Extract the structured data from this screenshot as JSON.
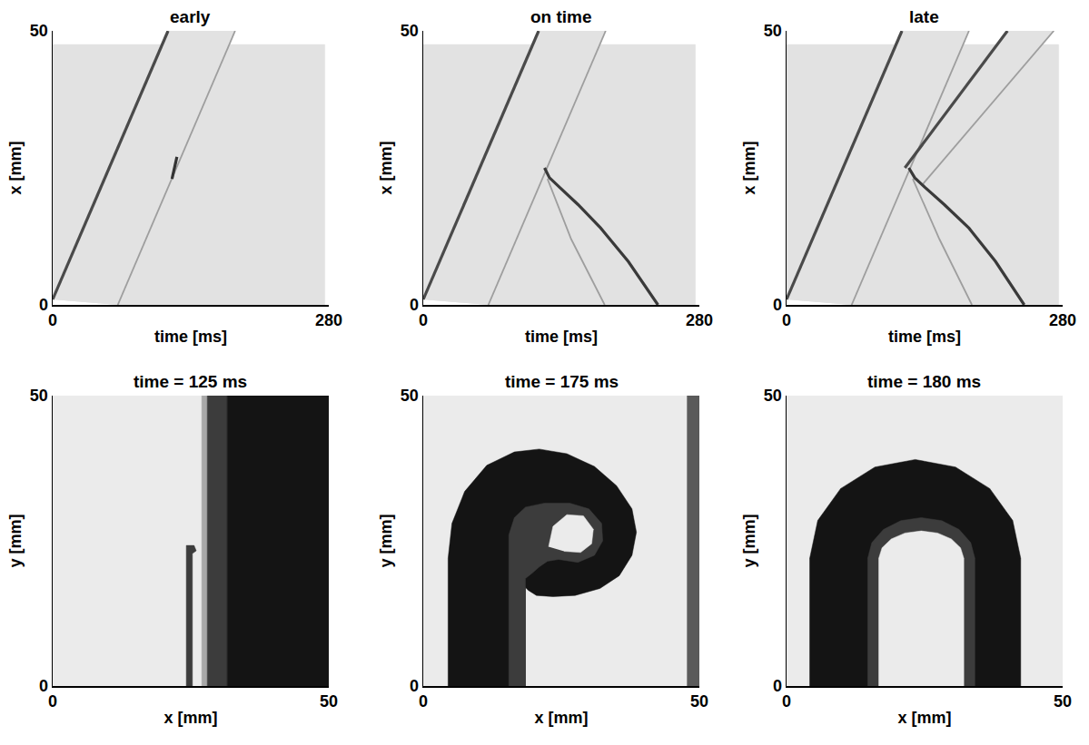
{
  "chart_data": [
    {
      "type": "line",
      "title": "early",
      "x_label": "time [ms]",
      "y_label": "x [mm]",
      "xlim": [
        0,
        280
      ],
      "xticks": [
        0,
        280
      ],
      "ylim": [
        0,
        50
      ],
      "yticks": [
        0,
        50
      ],
      "series": [
        {
          "type": "area",
          "color": "#e2e2e2",
          "x": [
            0,
            0,
            276,
            276,
            66
          ],
          "values": [
            1,
            47.5,
            47.5,
            0,
            0
          ]
        },
        {
          "type": "area",
          "color": "#e2e2e2",
          "x": [
            0,
            117,
            185,
            66
          ],
          "values": [
            1,
            50,
            50,
            0
          ]
        },
        {
          "type": "line",
          "color": "#4a4a4a",
          "line_style": "thick",
          "x": [
            0,
            117
          ],
          "values": [
            1,
            50
          ]
        },
        {
          "type": "line",
          "color": "#9e9e9e",
          "line_style": "solid",
          "x": [
            66,
            185
          ],
          "values": [
            0,
            50
          ]
        },
        {
          "type": "line",
          "color": "#333333",
          "line_style": "thick",
          "x": [
            121,
            123,
            125,
            126
          ],
          "values": [
            23,
            24.5,
            26,
            27
          ]
        }
      ]
    },
    {
      "type": "line",
      "title": "on time",
      "x_label": "time [ms]",
      "y_label": "x [mm]",
      "xlim": [
        0,
        280
      ],
      "xticks": [
        0,
        280
      ],
      "ylim": [
        0,
        50
      ],
      "yticks": [
        0,
        50
      ],
      "series": [
        {
          "type": "area",
          "color": "#e2e2e2",
          "x": [
            0,
            0,
            276,
            276,
            66
          ],
          "values": [
            1,
            47.5,
            47.5,
            0,
            0
          ]
        },
        {
          "type": "area",
          "color": "#e2e2e2",
          "x": [
            0,
            117,
            185,
            66
          ],
          "values": [
            1,
            50,
            50,
            0
          ]
        },
        {
          "type": "line",
          "color": "#4a4a4a",
          "line_style": "thick",
          "x": [
            0,
            117
          ],
          "values": [
            1,
            50
          ]
        },
        {
          "type": "line",
          "color": "#9e9e9e",
          "line_style": "solid",
          "x": [
            66,
            185
          ],
          "values": [
            0,
            50
          ]
        },
        {
          "type": "line",
          "color": "#9e9e9e",
          "line_style": "solid",
          "x": [
            126,
            150,
            184
          ],
          "values": [
            23,
            12,
            0
          ]
        },
        {
          "type": "line",
          "color": "#3a3a3a",
          "line_style": "thick",
          "x": [
            123,
            128,
            138,
            157,
            180,
            208,
            238
          ],
          "values": [
            25,
            23.2,
            21.5,
            18.3,
            14,
            7.9,
            0
          ]
        }
      ]
    },
    {
      "type": "line",
      "title": "late",
      "x_label": "time [ms]",
      "y_label": "x [mm]",
      "xlim": [
        0,
        280
      ],
      "xticks": [
        0,
        280
      ],
      "ylim": [
        0,
        50
      ],
      "yticks": [
        0,
        50
      ],
      "series": [
        {
          "type": "area",
          "color": "#e2e2e2",
          "x": [
            0,
            0,
            276,
            276,
            66
          ],
          "values": [
            1,
            47.5,
            47.5,
            0,
            0
          ]
        },
        {
          "type": "area",
          "color": "#e2e2e2",
          "x": [
            0,
            117,
            185,
            66
          ],
          "values": [
            1,
            50,
            50,
            0
          ]
        },
        {
          "type": "area",
          "color": "#e2e2e2",
          "x": [
            120,
            224,
            271,
            138
          ],
          "values": [
            25,
            50,
            50,
            22
          ]
        },
        {
          "type": "line",
          "color": "#4a4a4a",
          "line_style": "thick",
          "x": [
            0,
            117
          ],
          "values": [
            1,
            50
          ]
        },
        {
          "type": "line",
          "color": "#9e9e9e",
          "line_style": "solid",
          "x": [
            66,
            185
          ],
          "values": [
            0,
            50
          ]
        },
        {
          "type": "line",
          "color": "#4a4a4a",
          "line_style": "thick",
          "x": [
            120,
            224
          ],
          "values": [
            25,
            50
          ]
        },
        {
          "type": "line",
          "color": "#9e9e9e",
          "line_style": "solid",
          "x": [
            138,
            271
          ],
          "values": [
            22,
            50
          ]
        },
        {
          "type": "line",
          "color": "#9e9e9e",
          "line_style": "solid",
          "x": [
            128,
            155,
            188
          ],
          "values": [
            23,
            12,
            0
          ]
        },
        {
          "type": "line",
          "color": "#3a3a3a",
          "line_style": "thick",
          "x": [
            124,
            130,
            140,
            160,
            185,
            212,
            241
          ],
          "values": [
            25,
            23.2,
            21.5,
            18.3,
            14,
            7.9,
            0
          ]
        }
      ]
    },
    {
      "type": "area",
      "title": "time = 125 ms",
      "x_label": "x [mm]",
      "y_label": "y [mm]",
      "xlim": [
        0,
        50
      ],
      "xticks": [
        0,
        50
      ],
      "ylim": [
        0,
        50
      ],
      "yticks": [
        0,
        50
      ],
      "series": [
        {
          "color": "#ebebeb",
          "x": [
            0,
            0,
            50,
            50
          ],
          "values": [
            0,
            50,
            50,
            0
          ]
        },
        {
          "color": "#a8a8a8",
          "x": [
            27,
            27,
            28,
            28
          ],
          "values": [
            0,
            50,
            50,
            0
          ]
        },
        {
          "color": "#3c3c3c",
          "x": [
            28,
            28,
            31.6,
            31.6
          ],
          "values": [
            0,
            50,
            50,
            0
          ]
        },
        {
          "color": "#141414",
          "x": [
            31.6,
            31.6,
            50,
            50
          ],
          "values": [
            0,
            50,
            50,
            0
          ]
        },
        {
          "color": "#3c3c3c",
          "x": [
            24.2,
            24.2,
            25.6,
            26,
            25.3,
            25.3
          ],
          "values": [
            0,
            24.2,
            24.2,
            23.3,
            22.8,
            0
          ]
        }
      ]
    },
    {
      "type": "area",
      "title": "time = 175 ms",
      "x_label": "x [mm]",
      "y_label": "y [mm]",
      "xlim": [
        0,
        50
      ],
      "xticks": [
        0,
        50
      ],
      "ylim": [
        0,
        50
      ],
      "yticks": [
        0,
        50
      ],
      "series": [
        {
          "color": "#ebebeb",
          "x": [
            0,
            0,
            50,
            50
          ],
          "values": [
            0,
            50,
            50,
            0
          ]
        },
        {
          "color": "#141414",
          "x": [
            4.5,
            4.5,
            5.2,
            7.5,
            11.5,
            16.5,
            21,
            26,
            31,
            35,
            37.8,
            38.6,
            37.8,
            35.5,
            32,
            27.5,
            23.5,
            20.5,
            19,
            18.5,
            18.5
          ],
          "values": [
            0,
            22,
            28,
            33.5,
            38,
            40.3,
            40.8,
            40,
            37.8,
            34.5,
            30.5,
            26.5,
            22.5,
            19,
            16.8,
            15.6,
            15.4,
            15.6,
            16.5,
            17,
            0
          ]
        },
        {
          "color": "#3c3c3c",
          "x": [
            15.5,
            15.5,
            16.5,
            18.5,
            22,
            26.5,
            30,
            32.3,
            32.5,
            31,
            28,
            24.5,
            22.5,
            21,
            19.8,
            18.5,
            18.5
          ],
          "values": [
            0,
            26,
            29,
            30.8,
            31.5,
            31.5,
            30.5,
            28,
            25,
            22.5,
            21.3,
            21.8,
            21.5,
            20.5,
            19.5,
            18.5,
            0
          ]
        },
        {
          "color": "#ebebeb",
          "x": [
            22.7,
            23.5,
            26,
            29,
            30.8,
            30.5,
            28.5,
            25.5
          ],
          "values": [
            24,
            27.5,
            29.5,
            29.3,
            27,
            24.5,
            23,
            23.2
          ]
        },
        {
          "color": "#5a5a5a",
          "x": [
            47.8,
            47.8,
            50,
            50
          ],
          "values": [
            0,
            50,
            50,
            0
          ]
        }
      ]
    },
    {
      "type": "area",
      "title": "time = 180 ms",
      "x_label": "x [mm]",
      "y_label": "y [mm]",
      "xlim": [
        0,
        50
      ],
      "xticks": [
        0,
        50
      ],
      "ylim": [
        0,
        50
      ],
      "yticks": [
        0,
        50
      ],
      "series": [
        {
          "color": "#ebebeb",
          "x": [
            0,
            0,
            50,
            50
          ],
          "values": [
            0,
            50,
            50,
            0
          ]
        },
        {
          "color": "#141414",
          "x": [
            4.2,
            4.2,
            5.65,
            9.8,
            16.0,
            23.3,
            30.6,
            36.8,
            40.95,
            42.4,
            42.4
          ],
          "values": [
            0,
            22,
            28.5,
            34.0,
            37.7,
            39,
            37.7,
            34.0,
            28.5,
            22,
            0
          ]
        },
        {
          "color": "#3c3c3c",
          "x": [
            14.7,
            14.7,
            15.44,
            17.54,
            20.69,
            24.4,
            28.11,
            31.26,
            33.36,
            34.1,
            34.1
          ],
          "values": [
            0,
            22,
            24.68,
            26.95,
            28.47,
            29,
            28.47,
            26.95,
            24.68,
            22,
            0
          ]
        },
        {
          "color": "#ebebeb",
          "x": [
            16.7,
            16.7,
            17.29,
            18.96,
            21.45,
            24.4,
            27.35,
            29.84,
            31.51,
            32.1,
            32.1
          ],
          "values": [
            0,
            22,
            23.8,
            25.32,
            26.34,
            26.7,
            26.34,
            25.32,
            23.8,
            22,
            0
          ]
        }
      ]
    }
  ]
}
